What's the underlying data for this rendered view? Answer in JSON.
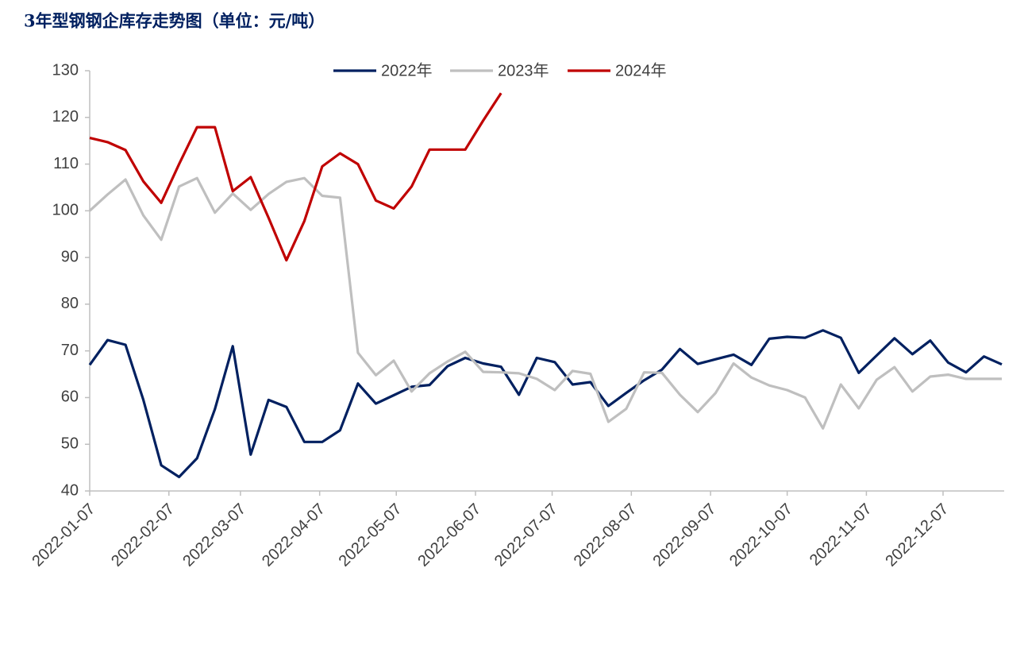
{
  "chart_data": {
    "type": "line",
    "title": "3年型钢钢企库存走势图（单位：元/吨）",
    "x": [
      "2022-01-07",
      "2022-01-14",
      "2022-01-21",
      "2022-01-28",
      "2022-02-04",
      "2022-02-11",
      "2022-02-18",
      "2022-02-25",
      "2022-03-04",
      "2022-03-11",
      "2022-03-18",
      "2022-03-25",
      "2022-04-01",
      "2022-04-08",
      "2022-04-15",
      "2022-04-22",
      "2022-04-29",
      "2022-05-06",
      "2022-05-13",
      "2022-05-20",
      "2022-05-27",
      "2022-06-03",
      "2022-06-10",
      "2022-06-17",
      "2022-06-24",
      "2022-07-01",
      "2022-07-08",
      "2022-07-15",
      "2022-07-22",
      "2022-07-29",
      "2022-08-05",
      "2022-08-12",
      "2022-08-19",
      "2022-08-26",
      "2022-09-02",
      "2022-09-09",
      "2022-09-16",
      "2022-09-23",
      "2022-09-30",
      "2022-10-07",
      "2022-10-14",
      "2022-10-21",
      "2022-10-28",
      "2022-11-04",
      "2022-11-11",
      "2022-11-18",
      "2022-11-25",
      "2022-12-02",
      "2022-12-09",
      "2022-12-16",
      "2022-12-23",
      "2022-12-30"
    ],
    "xlim": [
      "2022-01-07",
      "2022-12-30"
    ],
    "xticks": [
      "2022-01-07",
      "2022-02-07",
      "2022-03-07",
      "2022-04-07",
      "2022-05-07",
      "2022-06-07",
      "2022-07-07",
      "2022-08-07",
      "2022-09-07",
      "2022-10-07",
      "2022-11-07",
      "2022-12-07"
    ],
    "ylim": [
      40,
      130
    ],
    "yticks": [
      40,
      50,
      60,
      70,
      80,
      90,
      100,
      110,
      120,
      130
    ],
    "grid": false,
    "legend": "top",
    "series": [
      {
        "name": "2022年",
        "color": "#002060",
        "values": [
          67,
          72.3,
          71.3,
          59.5,
          45.5,
          43,
          47,
          57.5,
          71,
          47.8,
          59.5,
          58,
          50.5,
          50.5,
          53,
          63,
          58.7,
          60.5,
          62.3,
          62.7,
          66.7,
          68.5,
          67.3,
          66.6,
          60.6,
          68.5,
          67.6,
          62.8,
          63.3,
          58.2,
          61,
          63.7,
          66,
          70.4,
          67.2,
          68.2,
          69.2,
          67,
          72.6,
          73,
          72.8,
          74.4,
          72.8,
          65.3,
          69,
          72.7,
          69.3,
          72.2,
          67.5,
          65.4,
          68.8,
          67.1
        ]
      },
      {
        "name": "2023年",
        "color": "#bfbfbf",
        "values": [
          100,
          103.5,
          106.7,
          99,
          93.8,
          105.2,
          107,
          99.6,
          103.7,
          100.2,
          103.6,
          106.2,
          107,
          103.2,
          102.8,
          69.6,
          64.8,
          67.9,
          61.3,
          65.2,
          67.7,
          69.8,
          65.5,
          65.4,
          65.2,
          64,
          61.6,
          65.7,
          65.1,
          54.8,
          57.6,
          65.4,
          65.3,
          60.6,
          56.9,
          61,
          67.3,
          64.3,
          62.6,
          61.6,
          60,
          53.4,
          62.8,
          57.7,
          63.8,
          66.5,
          61.3,
          64.5,
          64.9,
          64,
          64,
          64
        ]
      },
      {
        "name": "2024年",
        "color": "#c00000",
        "values": [
          115.6,
          114.7,
          113,
          106.3,
          101.7,
          110,
          117.9,
          117.9,
          104.2,
          107.2,
          98.5,
          89.4,
          97.8,
          109.5,
          112.3,
          110,
          102.2,
          100.5,
          105.2,
          113.1,
          113.1,
          113.1,
          119.3,
          125.2,
          null,
          null,
          null,
          null,
          null,
          null,
          null,
          null,
          null,
          null,
          null,
          null,
          null,
          null,
          null,
          null,
          null,
          null,
          null,
          null,
          null,
          null,
          null,
          null,
          null,
          null,
          null,
          null
        ]
      }
    ]
  }
}
